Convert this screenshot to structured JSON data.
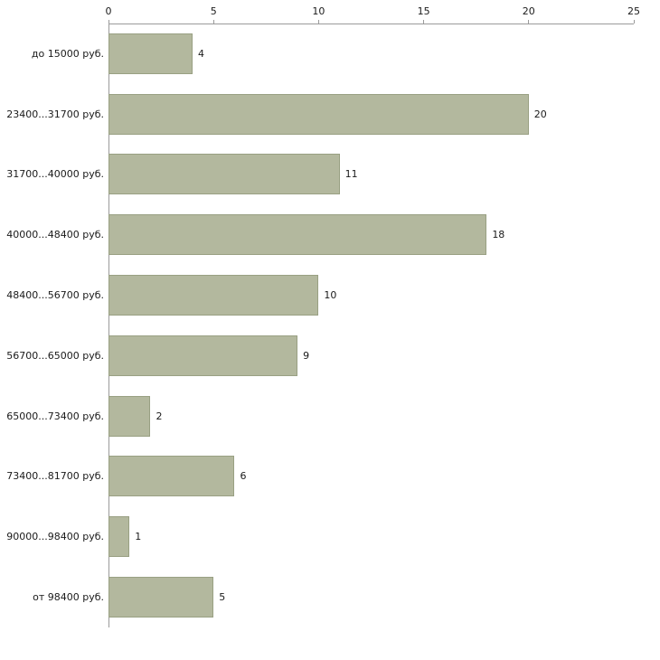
{
  "chart_data": {
    "type": "bar",
    "orientation": "horizontal",
    "title": "",
    "xlabel": "",
    "ylabel": "",
    "categories": [
      "до 15000 руб.",
      "23400...31700 руб.",
      "31700...40000 руб.",
      "40000...48400 руб.",
      "48400...56700 руб.",
      "56700...65000 руб.",
      "65000...73400 руб.",
      "73400...81700 руб.",
      "90000...98400 руб.",
      "от 98400 руб."
    ],
    "values": [
      4,
      20,
      11,
      18,
      10,
      9,
      2,
      6,
      1,
      5
    ],
    "xlim": [
      0,
      25
    ],
    "x_ticks": [
      0,
      5,
      10,
      15,
      20,
      25
    ],
    "x_axis_position": "top",
    "grid": false,
    "legend_position": "none",
    "value_labels": true,
    "bar_color": "#b3b89e",
    "bar_border_color": "#99a083",
    "axis_color": "#9a9a9a",
    "text_color": "#1a1a1a",
    "background_color": "#ffffff"
  }
}
